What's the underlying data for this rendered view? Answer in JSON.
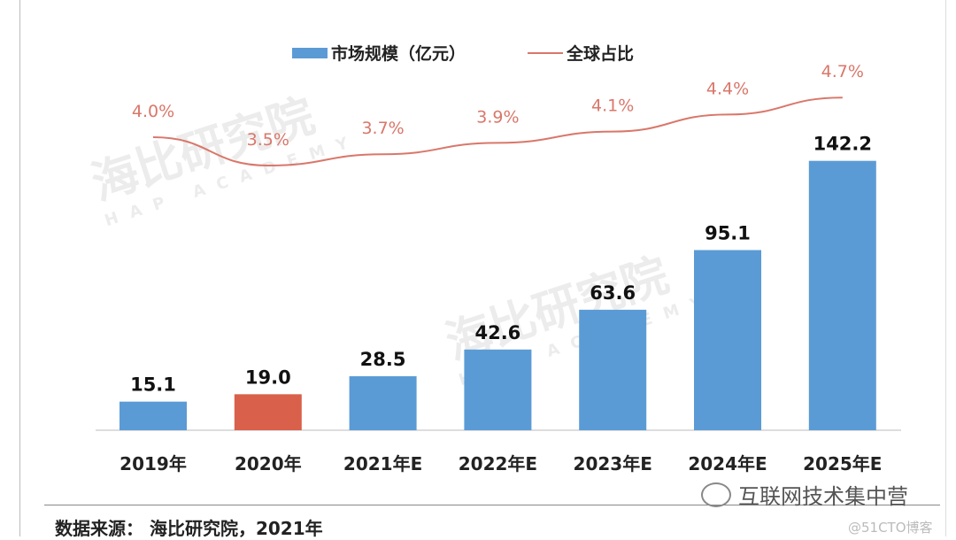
{
  "chart_data": {
    "type": "bar+line",
    "categories": [
      "2019年",
      "2020年",
      "2021年E",
      "2022年E",
      "2023年E",
      "2024年E",
      "2025年E"
    ],
    "series": [
      {
        "name": "市场规模（亿元）",
        "type": "bar",
        "values": [
          15.1,
          19.0,
          28.5,
          42.6,
          63.6,
          95.1,
          142.2
        ],
        "labels": [
          "15.1",
          "19.0",
          "28.5",
          "42.6",
          "63.6",
          "95.1",
          "142.2"
        ],
        "color": "#5b9bd5",
        "highlight_color": "#d9604a",
        "highlight_index": 1
      },
      {
        "name": "全球占比",
        "type": "line",
        "values": [
          4.0,
          3.5,
          3.7,
          3.9,
          4.1,
          4.4,
          4.7
        ],
        "labels": [
          "4.0%",
          "3.5%",
          "3.7%",
          "3.9%",
          "4.1%",
          "4.4%",
          "4.7%"
        ],
        "color": "#d9776a"
      }
    ],
    "legend": {
      "position": "top",
      "items": [
        "市场规模（亿元）",
        "全球占比"
      ]
    },
    "grid": false
  },
  "source": "数据来源： 海比研究院，2021年",
  "watermark": {
    "name": "海比研究院",
    "sub": "HAP ACADEMY"
  },
  "wechat_account": "互联网技术集中营",
  "blog_mark": "@51CTO博客"
}
